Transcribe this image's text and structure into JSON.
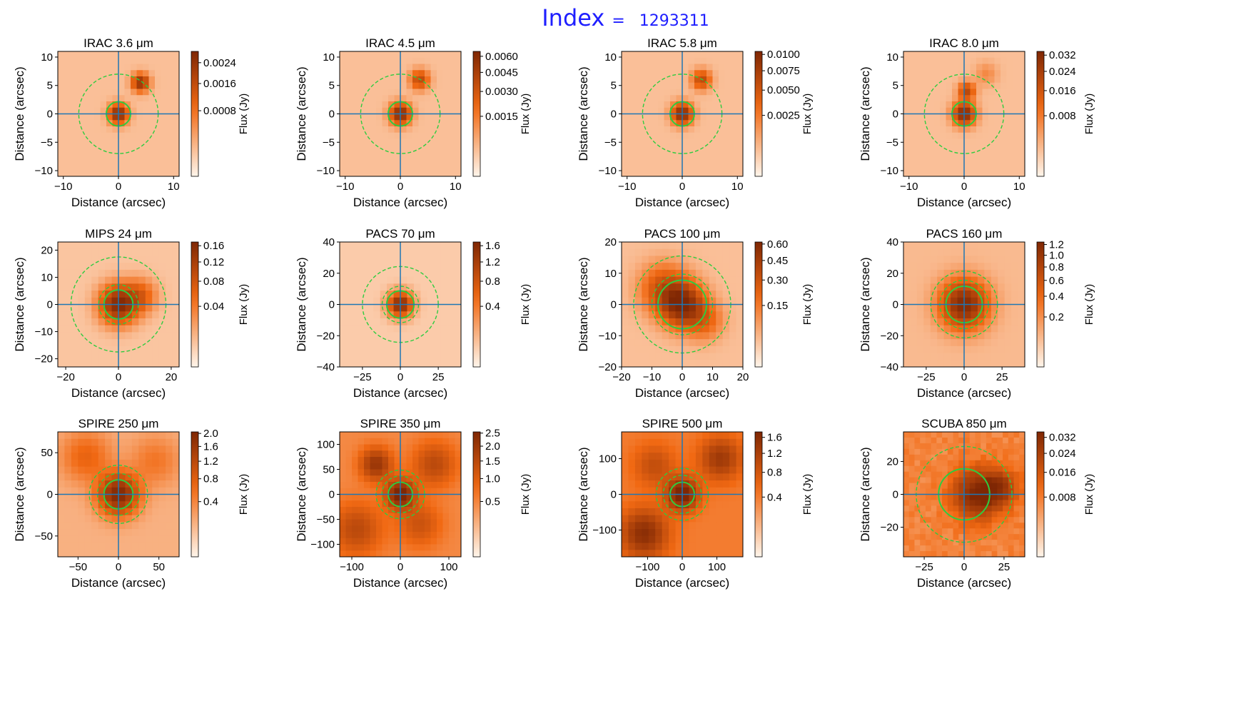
{
  "header": {
    "label": "Index",
    "equals": "=",
    "value": "1293311"
  },
  "colors": {
    "ring_solid": "#2ecc40",
    "ring_dashed": "#2ecc40",
    "crosshair": "#1f77b4",
    "cmap_low": "#fff5eb",
    "cmap_mid": "#f16913",
    "cmap_high": "#7f2704"
  },
  "chart_data": [
    {
      "type": "heatmap",
      "title": "IRAC 3.6 μm",
      "band": "IRAC 3.6",
      "unit": "μm",
      "xlabel": "Distance (arcsec)",
      "ylabel": "Distance (arcsec)",
      "cbar_label": "Flux (Jy)",
      "extent": 11,
      "xticks": [
        -10,
        0,
        10
      ],
      "yticks": [
        -10,
        -5,
        0,
        5,
        10
      ],
      "cbar_max": 0.0029,
      "cbar_ticks": [
        "0.0024",
        "0.0016",
        "0.0008"
      ],
      "cbar_tick_values": [
        0.0024,
        0.0016,
        0.0008
      ],
      "aperture_radius": 2.2,
      "annulus_radii": [
        7.2
      ],
      "ncells": 20,
      "sources": [
        {
          "x": 0,
          "y": 0,
          "amp": 1.0,
          "sigma": 1.1
        },
        {
          "x": 4,
          "y": 5.5,
          "amp": 0.9,
          "sigma": 1.0
        }
      ],
      "background": 0.05
    },
    {
      "type": "heatmap",
      "title": "IRAC 4.5 μm",
      "band": "IRAC 4.5",
      "unit": "μm",
      "xlabel": "Distance (arcsec)",
      "ylabel": "Distance (arcsec)",
      "cbar_label": "Flux (Jy)",
      "extent": 11,
      "xticks": [
        -10,
        0,
        10
      ],
      "yticks": [
        -10,
        -5,
        0,
        5,
        10
      ],
      "cbar_max": 0.0065,
      "cbar_ticks": [
        "0.0060",
        "0.0045",
        "0.0030",
        "0.0015"
      ],
      "cbar_tick_values": [
        0.006,
        0.0045,
        0.003,
        0.0015
      ],
      "aperture_radius": 2.2,
      "annulus_radii": [
        7.2
      ],
      "ncells": 20,
      "sources": [
        {
          "x": 0,
          "y": 0,
          "amp": 1.0,
          "sigma": 1.2
        },
        {
          "x": 3.5,
          "y": 6,
          "amp": 0.6,
          "sigma": 1.1
        }
      ],
      "background": 0.05
    },
    {
      "type": "heatmap",
      "title": "IRAC 5.8 μm",
      "band": "IRAC 5.8",
      "unit": "μm",
      "xlabel": "Distance (arcsec)",
      "ylabel": "Distance (arcsec)",
      "cbar_label": "Flux (Jy)",
      "extent": 11,
      "xticks": [
        -10,
        0,
        10
      ],
      "yticks": [
        -10,
        -5,
        0,
        5,
        10
      ],
      "cbar_max": 0.0105,
      "cbar_ticks": [
        "0.0100",
        "0.0075",
        "0.0050",
        "0.0025"
      ],
      "cbar_tick_values": [
        0.01,
        0.0075,
        0.005,
        0.0025
      ],
      "aperture_radius": 2.2,
      "annulus_radii": [
        7.2
      ],
      "ncells": 20,
      "sources": [
        {
          "x": 0,
          "y": 0,
          "amp": 1.0,
          "sigma": 1.2
        },
        {
          "x": 3.5,
          "y": 6,
          "amp": 0.6,
          "sigma": 1.1
        }
      ],
      "background": 0.05
    },
    {
      "type": "heatmap",
      "title": "IRAC 8.0 μm",
      "band": "IRAC 8.0",
      "unit": "μm",
      "xlabel": "Distance (arcsec)",
      "ylabel": "Distance (arcsec)",
      "cbar_label": "Flux (Jy)",
      "extent": 11,
      "xticks": [
        -10,
        0,
        10
      ],
      "yticks": [
        -10,
        -5,
        0,
        5,
        10
      ],
      "cbar_max": 0.034,
      "cbar_ticks": [
        "0.032",
        "0.024",
        "0.016",
        "0.008"
      ],
      "cbar_tick_values": [
        0.032,
        0.024,
        0.016,
        0.008
      ],
      "aperture_radius": 2.2,
      "annulus_radii": [
        7.2
      ],
      "ncells": 20,
      "sources": [
        {
          "x": 0,
          "y": 0,
          "amp": 1.0,
          "sigma": 1.3
        },
        {
          "x": 0.5,
          "y": 4,
          "amp": 0.6,
          "sigma": 1.0
        },
        {
          "x": 4,
          "y": 7,
          "amp": 0.15,
          "sigma": 1.3
        }
      ],
      "background": 0.05
    },
    {
      "type": "heatmap",
      "title": "MIPS 24 μm",
      "band": "MIPS 24",
      "unit": "μm",
      "xlabel": "Distance (arcsec)",
      "ylabel": "Distance (arcsec)",
      "cbar_label": "Flux (Jy)",
      "extent": 23,
      "xticks": [
        -20,
        0,
        20
      ],
      "yticks": [
        -20,
        -10,
        0,
        10,
        20
      ],
      "cbar_max": 0.17,
      "cbar_ticks": [
        "0.16",
        "0.12",
        "0.08",
        "0.04"
      ],
      "cbar_tick_values": [
        0.16,
        0.12,
        0.08,
        0.04
      ],
      "aperture_radius": 5.5,
      "annulus_radii": [
        7.5,
        18
      ],
      "ncells": 18,
      "sources": [
        {
          "x": 0,
          "y": 0,
          "amp": 1.0,
          "sigma": 4.5
        },
        {
          "x": 8,
          "y": 3,
          "amp": 0.4,
          "sigma": 4.0
        }
      ],
      "background": 0.04
    },
    {
      "type": "heatmap",
      "title": "PACS 70 μm",
      "band": "PACS 70",
      "unit": "μm",
      "xlabel": "Distance (arcsec)",
      "ylabel": "Distance (arcsec)",
      "cbar_label": "Flux (Jy)",
      "extent": 40,
      "xticks": [
        -25,
        0,
        25
      ],
      "yticks": [
        -40,
        -20,
        0,
        20,
        40
      ],
      "cbar_max": 1.7,
      "cbar_ticks": [
        "1.6",
        "1.2",
        "0.8",
        "0.4"
      ],
      "cbar_tick_values": [
        1.6,
        1.2,
        0.8,
        0.4
      ],
      "aperture_radius": 9,
      "annulus_radii": [
        12,
        25
      ],
      "ncells": 18,
      "sources": [
        {
          "x": 0,
          "y": 0,
          "amp": 1.0,
          "sigma": 5.0
        }
      ],
      "background": 0.03
    },
    {
      "type": "heatmap",
      "title": "PACS 100 μm",
      "band": "PACS 100",
      "unit": "μm",
      "xlabel": "Distance (arcsec)",
      "ylabel": "Distance (arcsec)",
      "cbar_label": "Flux (Jy)",
      "extent": 20,
      "xticks": [
        -20,
        -10,
        0,
        10,
        20
      ],
      "yticks": [
        -20,
        -10,
        0,
        10,
        20
      ],
      "cbar_max": 0.62,
      "cbar_ticks": [
        "0.60",
        "0.45",
        "0.30",
        "0.15"
      ],
      "cbar_tick_values": [
        0.6,
        0.45,
        0.3,
        0.15
      ],
      "aperture_radius": 8,
      "annulus_radii": [
        10,
        16
      ],
      "ncells": 18,
      "sources": [
        {
          "x": 0,
          "y": 0,
          "amp": 1.0,
          "sigma": 4.5
        },
        {
          "x": -6,
          "y": 5,
          "amp": 0.5,
          "sigma": 5.0
        },
        {
          "x": 7,
          "y": -5,
          "amp": 0.35,
          "sigma": 4.0
        }
      ],
      "background": 0.05
    },
    {
      "type": "heatmap",
      "title": "PACS 160 μm",
      "band": "PACS 160",
      "unit": "μm",
      "xlabel": "Distance (arcsec)",
      "ylabel": "Distance (arcsec)",
      "cbar_label": "Flux (Jy)",
      "extent": 40,
      "xticks": [
        -25,
        0,
        25
      ],
      "yticks": [
        -40,
        -20,
        0,
        20,
        40
      ],
      "cbar_max": 1.25,
      "cbar_ticks": [
        "1.2",
        "1.0",
        "0.8",
        "0.6",
        "0.4",
        "0.2"
      ],
      "cbar_tick_values": [
        1.2,
        1.0,
        0.8,
        0.6,
        0.4,
        0.2
      ],
      "aperture_radius": 12,
      "annulus_radii": [
        16,
        22
      ],
      "ncells": 18,
      "sources": [
        {
          "x": 0,
          "y": 0,
          "amp": 1.0,
          "sigma": 10
        }
      ],
      "background": 0.06
    },
    {
      "type": "heatmap",
      "title": "SPIRE 250 μm",
      "band": "SPIRE 250",
      "unit": "μm",
      "xlabel": "Distance (arcsec)",
      "ylabel": "Distance (arcsec)",
      "cbar_label": "Flux (Jy)",
      "extent": 75,
      "xticks": [
        -50,
        0,
        50
      ],
      "yticks": [
        -50,
        0,
        50
      ],
      "cbar_max": 2.05,
      "cbar_ticks": [
        "2.0",
        "1.6",
        "1.2",
        "0.8",
        "0.4"
      ],
      "cbar_tick_values": [
        2.0,
        1.6,
        1.2,
        0.8,
        0.4
      ],
      "aperture_radius": 18,
      "annulus_radii": [
        26,
        36
      ],
      "ncells": 18,
      "sources": [
        {
          "x": 0,
          "y": 0,
          "amp": 1.0,
          "sigma": 16
        },
        {
          "x": -40,
          "y": 45,
          "amp": 0.3,
          "sigma": 20
        },
        {
          "x": 45,
          "y": 40,
          "amp": 0.2,
          "sigma": 20
        }
      ],
      "background": 0.08
    },
    {
      "type": "heatmap",
      "title": "SPIRE 350 μm",
      "band": "SPIRE 350",
      "unit": "μm",
      "xlabel": "Distance (arcsec)",
      "ylabel": "Distance (arcsec)",
      "cbar_label": "Flux (Jy)",
      "extent": 125,
      "xticks": [
        -100,
        0,
        100
      ],
      "yticks": [
        -100,
        -50,
        0,
        50,
        100
      ],
      "cbar_max": 2.55,
      "cbar_ticks": [
        "2.5",
        "2.0",
        "1.5",
        "1.0",
        "0.5"
      ],
      "cbar_tick_values": [
        2.5,
        2.0,
        1.5,
        1.0,
        0.5
      ],
      "aperture_radius": 25,
      "annulus_radii": [
        38,
        50
      ],
      "ncells": 20,
      "sources": [
        {
          "x": 0,
          "y": 0,
          "amp": 1.0,
          "sigma": 20
        },
        {
          "x": -50,
          "y": 60,
          "amp": 0.7,
          "sigma": 22
        },
        {
          "x": 70,
          "y": 60,
          "amp": 0.45,
          "sigma": 30
        },
        {
          "x": -90,
          "y": -70,
          "amp": 0.45,
          "sigma": 35
        },
        {
          "x": 40,
          "y": -60,
          "amp": 0.35,
          "sigma": 30
        }
      ],
      "background": 0.2
    },
    {
      "type": "heatmap",
      "title": "SPIRE 500 μm",
      "band": "SPIRE 500",
      "unit": "μm",
      "xlabel": "Distance (arcsec)",
      "ylabel": "Distance (arcsec)",
      "cbar_label": "Flux (Jy)",
      "extent": 175,
      "xticks": [
        -100,
        0,
        100
      ],
      "yticks": [
        -100,
        0,
        100
      ],
      "cbar_max": 1.75,
      "cbar_ticks": [
        "1.6",
        "1.2",
        "0.8",
        "0.4"
      ],
      "cbar_tick_values": [
        1.6,
        1.2,
        0.8,
        0.4
      ],
      "aperture_radius": 35,
      "annulus_radii": [
        55,
        75
      ],
      "ncells": 18,
      "sources": [
        {
          "x": 0,
          "y": 0,
          "amp": 1.0,
          "sigma": 30
        },
        {
          "x": -110,
          "y": -110,
          "amp": 0.75,
          "sigma": 45
        },
        {
          "x": 110,
          "y": 100,
          "amp": 0.6,
          "sigma": 40
        },
        {
          "x": -80,
          "y": 80,
          "amp": 0.35,
          "sigma": 40
        }
      ],
      "background": 0.25
    },
    {
      "type": "heatmap",
      "title": "SCUBA 850 μm",
      "band": "SCUBA 850",
      "unit": "μm",
      "xlabel": "Distance (arcsec)",
      "ylabel": "Distance (arcsec)",
      "cbar_label": "Flux (Jy)",
      "extent": 38,
      "xticks": [
        -25,
        0,
        25
      ],
      "yticks": [
        -20,
        0,
        20
      ],
      "cbar_max": 0.035,
      "cbar_ticks": [
        "0.032",
        "0.024",
        "0.016",
        "0.008"
      ],
      "cbar_tick_values": [
        0.032,
        0.024,
        0.016,
        0.008
      ],
      "aperture_radius": 16,
      "annulus_radii": [
        30
      ],
      "ncells": 22,
      "sources": [
        {
          "x": 8,
          "y": 0,
          "amp": 0.85,
          "sigma": 10
        },
        {
          "x": 22,
          "y": 4,
          "amp": 0.55,
          "sigma": 8
        }
      ],
      "background": 0.22,
      "noise": 0.12
    }
  ]
}
